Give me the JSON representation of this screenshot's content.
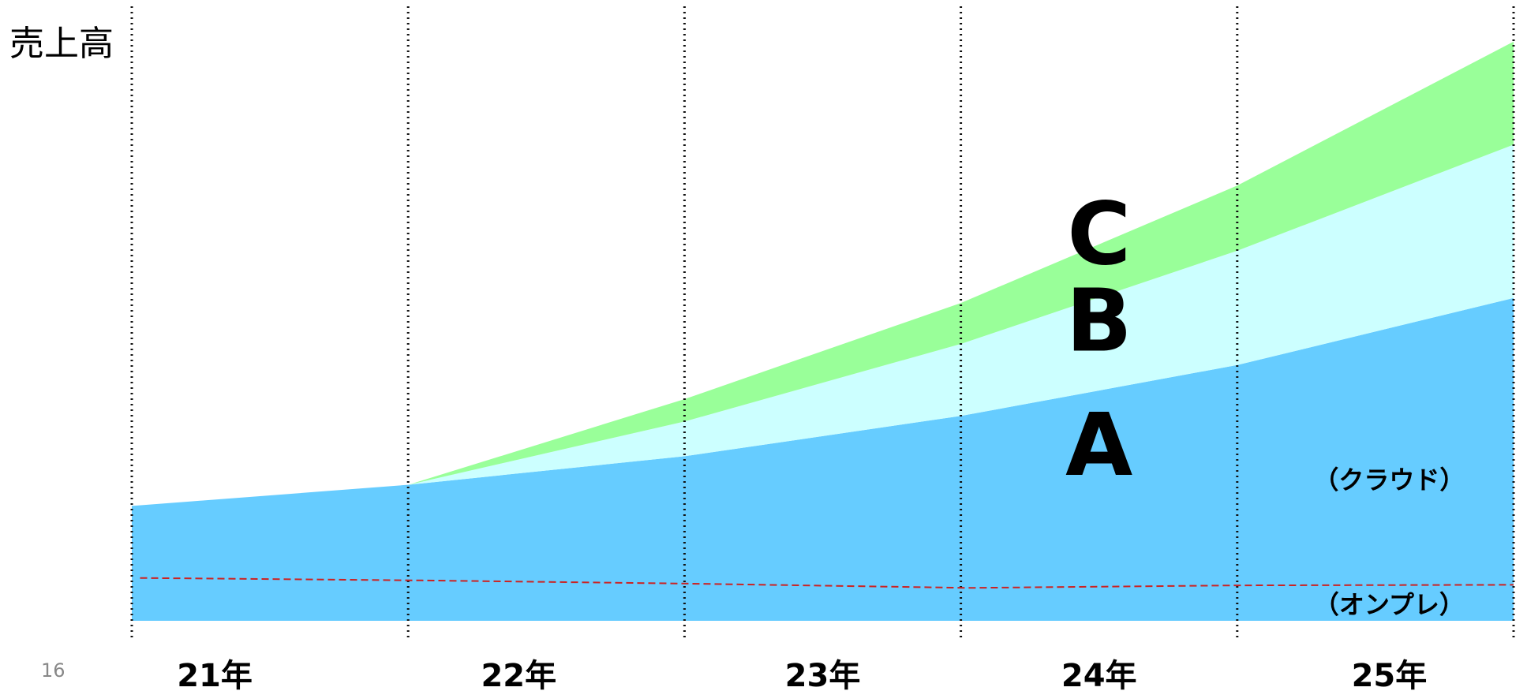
{
  "page": {
    "number": "16"
  },
  "chart_data": {
    "type": "area",
    "stacked": true,
    "ylabel": "売上高",
    "xlabel": "",
    "x_categories": [
      "21年",
      "22年",
      "23年",
      "24年",
      "25年"
    ],
    "x_axis": {
      "boundaries": [
        21,
        22,
        23,
        24,
        25,
        26
      ],
      "tick_label_centers": [
        21.3,
        22.4,
        23.5,
        24.5,
        25.55
      ]
    },
    "ylim": [
      0,
      100
    ],
    "grid": {
      "vertical": "dotted",
      "horizontal": false
    },
    "series": [
      {
        "name": "A",
        "color": "#66ccff",
        "points": [
          [
            21,
            18.5
          ],
          [
            22,
            21.9
          ],
          [
            23,
            26.5
          ],
          [
            24,
            33.0
          ],
          [
            25,
            41.2
          ],
          [
            26,
            52.0
          ]
        ]
      },
      {
        "name": "B",
        "color": "#ccffff",
        "points": [
          [
            21,
            0
          ],
          [
            22,
            0
          ],
          [
            23,
            5.6
          ],
          [
            24,
            11.6
          ],
          [
            25,
            18.4
          ],
          [
            26,
            24.7
          ]
        ]
      },
      {
        "name": "C",
        "color": "#99ff99",
        "points": [
          [
            21,
            0
          ],
          [
            22,
            0
          ],
          [
            23,
            3.6
          ],
          [
            24,
            6.6
          ],
          [
            25,
            10.5
          ],
          [
            26,
            16.6
          ]
        ]
      }
    ],
    "reference_line": {
      "style": "dashed",
      "color": "#cc2222",
      "points": [
        [
          21.03,
          6.9
        ],
        [
          22.05,
          6.5
        ],
        [
          23,
          6.0
        ],
        [
          24.03,
          5.3
        ],
        [
          25,
          5.7
        ],
        [
          26,
          5.8
        ]
      ]
    },
    "series_labels": [
      {
        "series": "C",
        "text": "C",
        "x": 24.5,
        "y": 57.5
      },
      {
        "series": "B",
        "text": "B",
        "x": 24.5,
        "y": 43.5
      },
      {
        "series": "A",
        "text": "A",
        "x": 24.5,
        "y": 23.5
      }
    ],
    "annotations": [
      {
        "text": "（クラウド）",
        "x": 25.55,
        "y": 21.3
      },
      {
        "text": "（オンプレ）",
        "x": 25.55,
        "y": 1.2
      }
    ]
  }
}
